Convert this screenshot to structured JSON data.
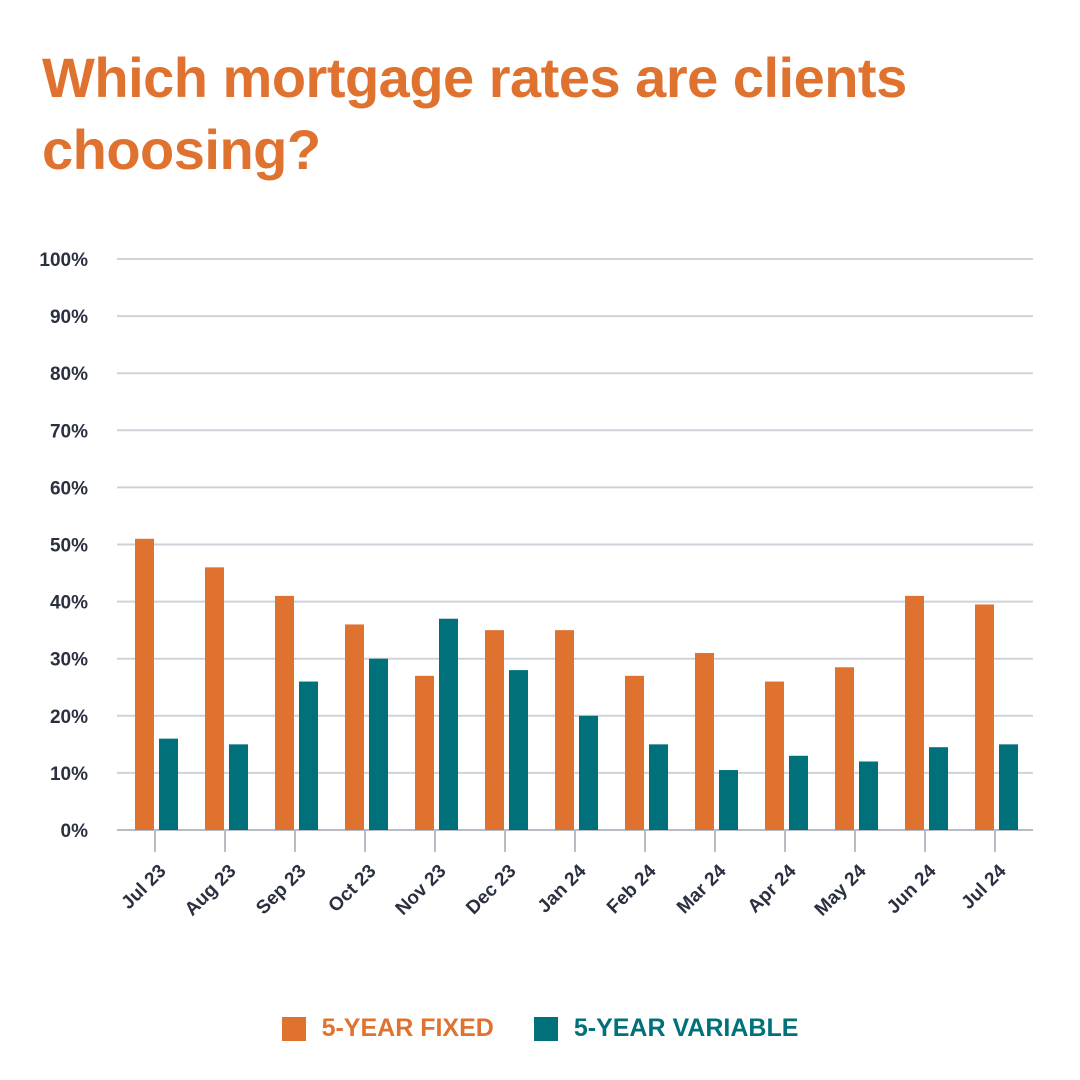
{
  "chart_data": {
    "type": "bar",
    "title": "Which mortgage rates are clients choosing?",
    "xlabel": "",
    "ylabel": "",
    "ylim": [
      0,
      100
    ],
    "yticks": [
      "0%",
      "10%",
      "20%",
      "30%",
      "40%",
      "50%",
      "60%",
      "70%",
      "80%",
      "90%",
      "100%"
    ],
    "grid": true,
    "legend_position": "bottom",
    "categories": [
      "Jul 23",
      "Aug 23",
      "Sep 23",
      "Oct 23",
      "Nov 23",
      "Dec 23",
      "Jan 24",
      "Feb 24",
      "Mar 24",
      "Apr 24",
      "May 24",
      "Jun 24",
      "Jul 24"
    ],
    "series": [
      {
        "name": "5-YEAR FIXED",
        "color": "#e07230",
        "values": [
          51,
          46,
          41,
          36,
          27,
          35,
          35,
          27,
          31,
          26,
          28.5,
          41,
          39.5
        ]
      },
      {
        "name": "5-YEAR VARIABLE",
        "color": "#00717a",
        "values": [
          16,
          15,
          26,
          30,
          37,
          28,
          20,
          15,
          10.5,
          13,
          12,
          14.5,
          15
        ]
      }
    ]
  }
}
